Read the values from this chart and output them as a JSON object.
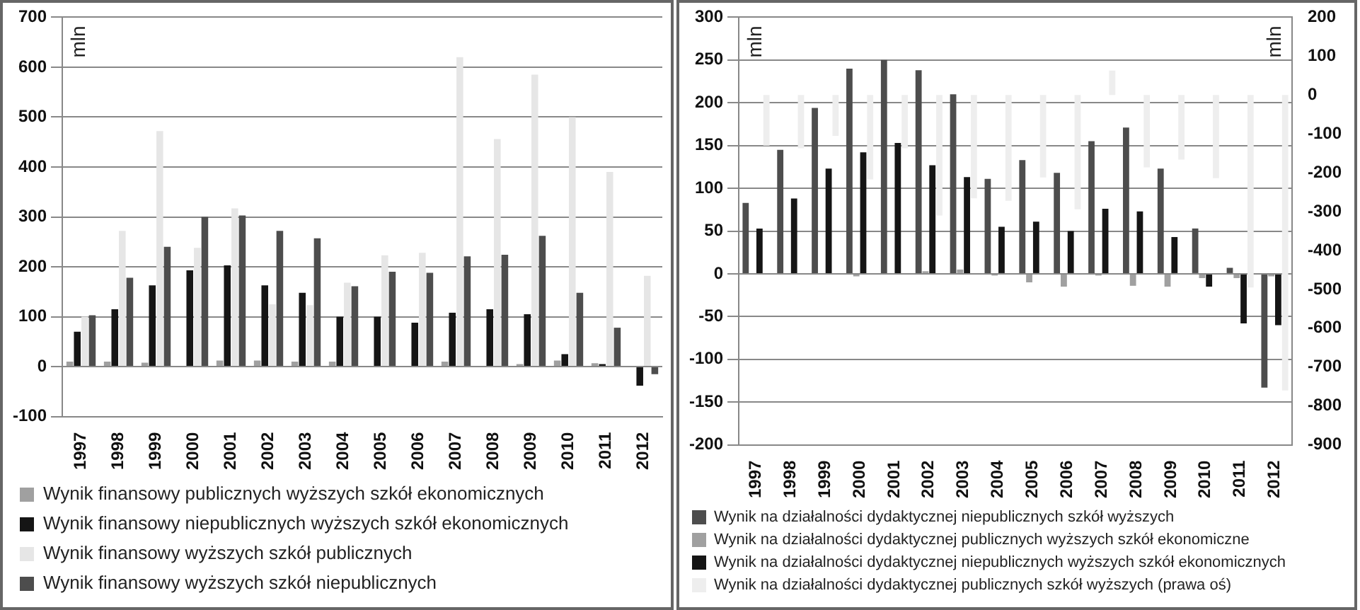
{
  "chart_data": [
    {
      "type": "bar",
      "ylabel": "mln",
      "categories": [
        "1997",
        "1998",
        "1999",
        "2000",
        "2001",
        "2002",
        "2003",
        "2004",
        "2005",
        "2006",
        "2007",
        "2008",
        "2009",
        "2010",
        "2011",
        "2012"
      ],
      "series": [
        {
          "name": "Wynik finansowy publicznych wyższych szkół ekonomicznych",
          "color": "#a0a0a0",
          "values": [
            10,
            10,
            8,
            null,
            12,
            12,
            10,
            10,
            0,
            null,
            10,
            null,
            5,
            12,
            7,
            null
          ]
        },
        {
          "name": "Wynik finansowy niepublicznych wyższych szkół ekonomicznych",
          "color": "#151515",
          "values": [
            70,
            115,
            163,
            193,
            203,
            163,
            148,
            100,
            100,
            88,
            108,
            115,
            105,
            25,
            5,
            -38
          ]
        },
        {
          "name": "Wynik finansowy wyższych szkół publicznych",
          "color": "#e6e6e6",
          "values": [
            100,
            272,
            472,
            238,
            317,
            125,
            123,
            168,
            223,
            228,
            620,
            456,
            585,
            500,
            390,
            182
          ]
        },
        {
          "name": "Wynik finansowy wyższych szkół niepublicznych",
          "color": "#4d4d4d",
          "values": [
            103,
            178,
            240,
            300,
            303,
            272,
            257,
            161,
            190,
            188,
            221,
            224,
            262,
            148,
            78,
            -15
          ]
        }
      ],
      "ylim": [
        -100,
        700
      ],
      "yticks": [
        -100,
        0,
        100,
        200,
        300,
        400,
        500,
        600,
        700
      ],
      "grid": "y",
      "legend": "bottom"
    },
    {
      "type": "bar",
      "ylabel": "mln",
      "y2label": "mln",
      "categories": [
        "1997",
        "1998",
        "1999",
        "2000",
        "2001",
        "2002",
        "2003",
        "2004",
        "2005",
        "2006",
        "2007",
        "2008",
        "2009",
        "2010",
        "2011",
        "2012"
      ],
      "series": [
        {
          "name": "Wynik na działalności dydaktycznej niepublicznych szkół wyższych",
          "color": "#4d4d4d",
          "values": [
            83,
            145,
            194,
            240,
            250,
            238,
            210,
            111,
            133,
            118,
            155,
            171,
            123,
            53,
            7,
            -133
          ]
        },
        {
          "name": "Wynik na działalności dydaktycznej publicznych wyższych szkół ekonomiczne",
          "color": "#a0a0a0",
          "values": [
            0,
            0,
            0,
            -3,
            0,
            3,
            5,
            -2,
            -10,
            -15,
            -2,
            -14,
            -15,
            -5,
            -5,
            -3
          ]
        },
        {
          "name": "Wynik na działalności dydaktycznej niepublicznych wyższych szkół ekonomicznych",
          "color": "#151515",
          "values": [
            53,
            88,
            123,
            142,
            153,
            127,
            113,
            55,
            61,
            50,
            76,
            73,
            43,
            -15,
            -58,
            -60
          ]
        },
        {
          "name": "Wynik na działalności dydaktycznej publicznych szkół wyższych (prawa oś)",
          "color": "#eeeeee",
          "axis": "y2",
          "values": [
            -130,
            -137,
            -105,
            -217,
            -137,
            -310,
            -266,
            -272,
            -212,
            -294,
            63,
            -186,
            -166,
            -214,
            -495,
            -760
          ]
        }
      ],
      "ylim": [
        -200,
        300
      ],
      "yticks": [
        -200,
        -150,
        -100,
        -50,
        0,
        50,
        100,
        150,
        200,
        250,
        300
      ],
      "y2lim": [
        -900,
        200
      ],
      "y2ticks": [
        -900,
        -800,
        -700,
        -600,
        -500,
        -400,
        -300,
        -200,
        -100,
        0,
        100,
        200
      ],
      "grid": "y",
      "legend": "bottom"
    }
  ]
}
